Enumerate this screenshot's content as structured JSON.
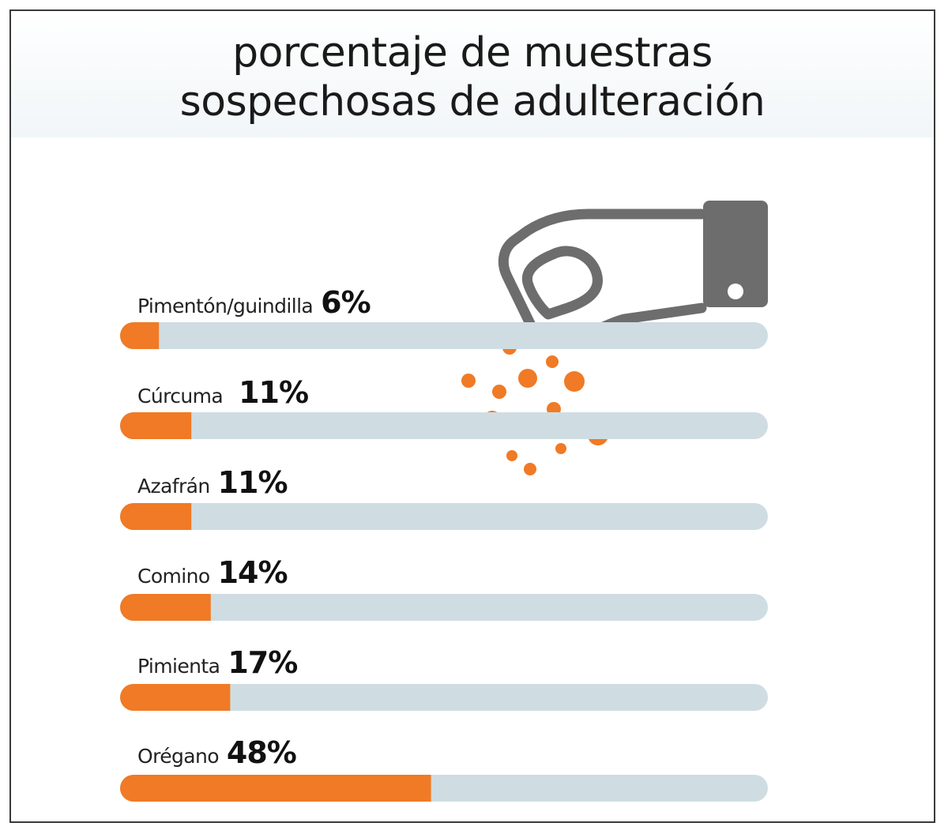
{
  "title_line1": "porcentaje de muestras",
  "title_line2": "sospechosas de adulteración",
  "colors": {
    "accent": "#f07a25",
    "track": "#cfdde3",
    "icon": "#6d6d6d"
  },
  "icon": "hand-sprinkling-spice-icon",
  "chart_data": {
    "type": "bar",
    "orientation": "horizontal",
    "categories": [
      "Pimentón/guindilla",
      "Cúrcuma",
      "Azafrán",
      "Comino",
      "Pimienta",
      "Orégano"
    ],
    "values": [
      6,
      11,
      11,
      14,
      17,
      48
    ],
    "value_labels": [
      "6%",
      "11%",
      "11%",
      "14%",
      "17%",
      "48%"
    ],
    "xlim": [
      0,
      100
    ],
    "grid": false
  }
}
